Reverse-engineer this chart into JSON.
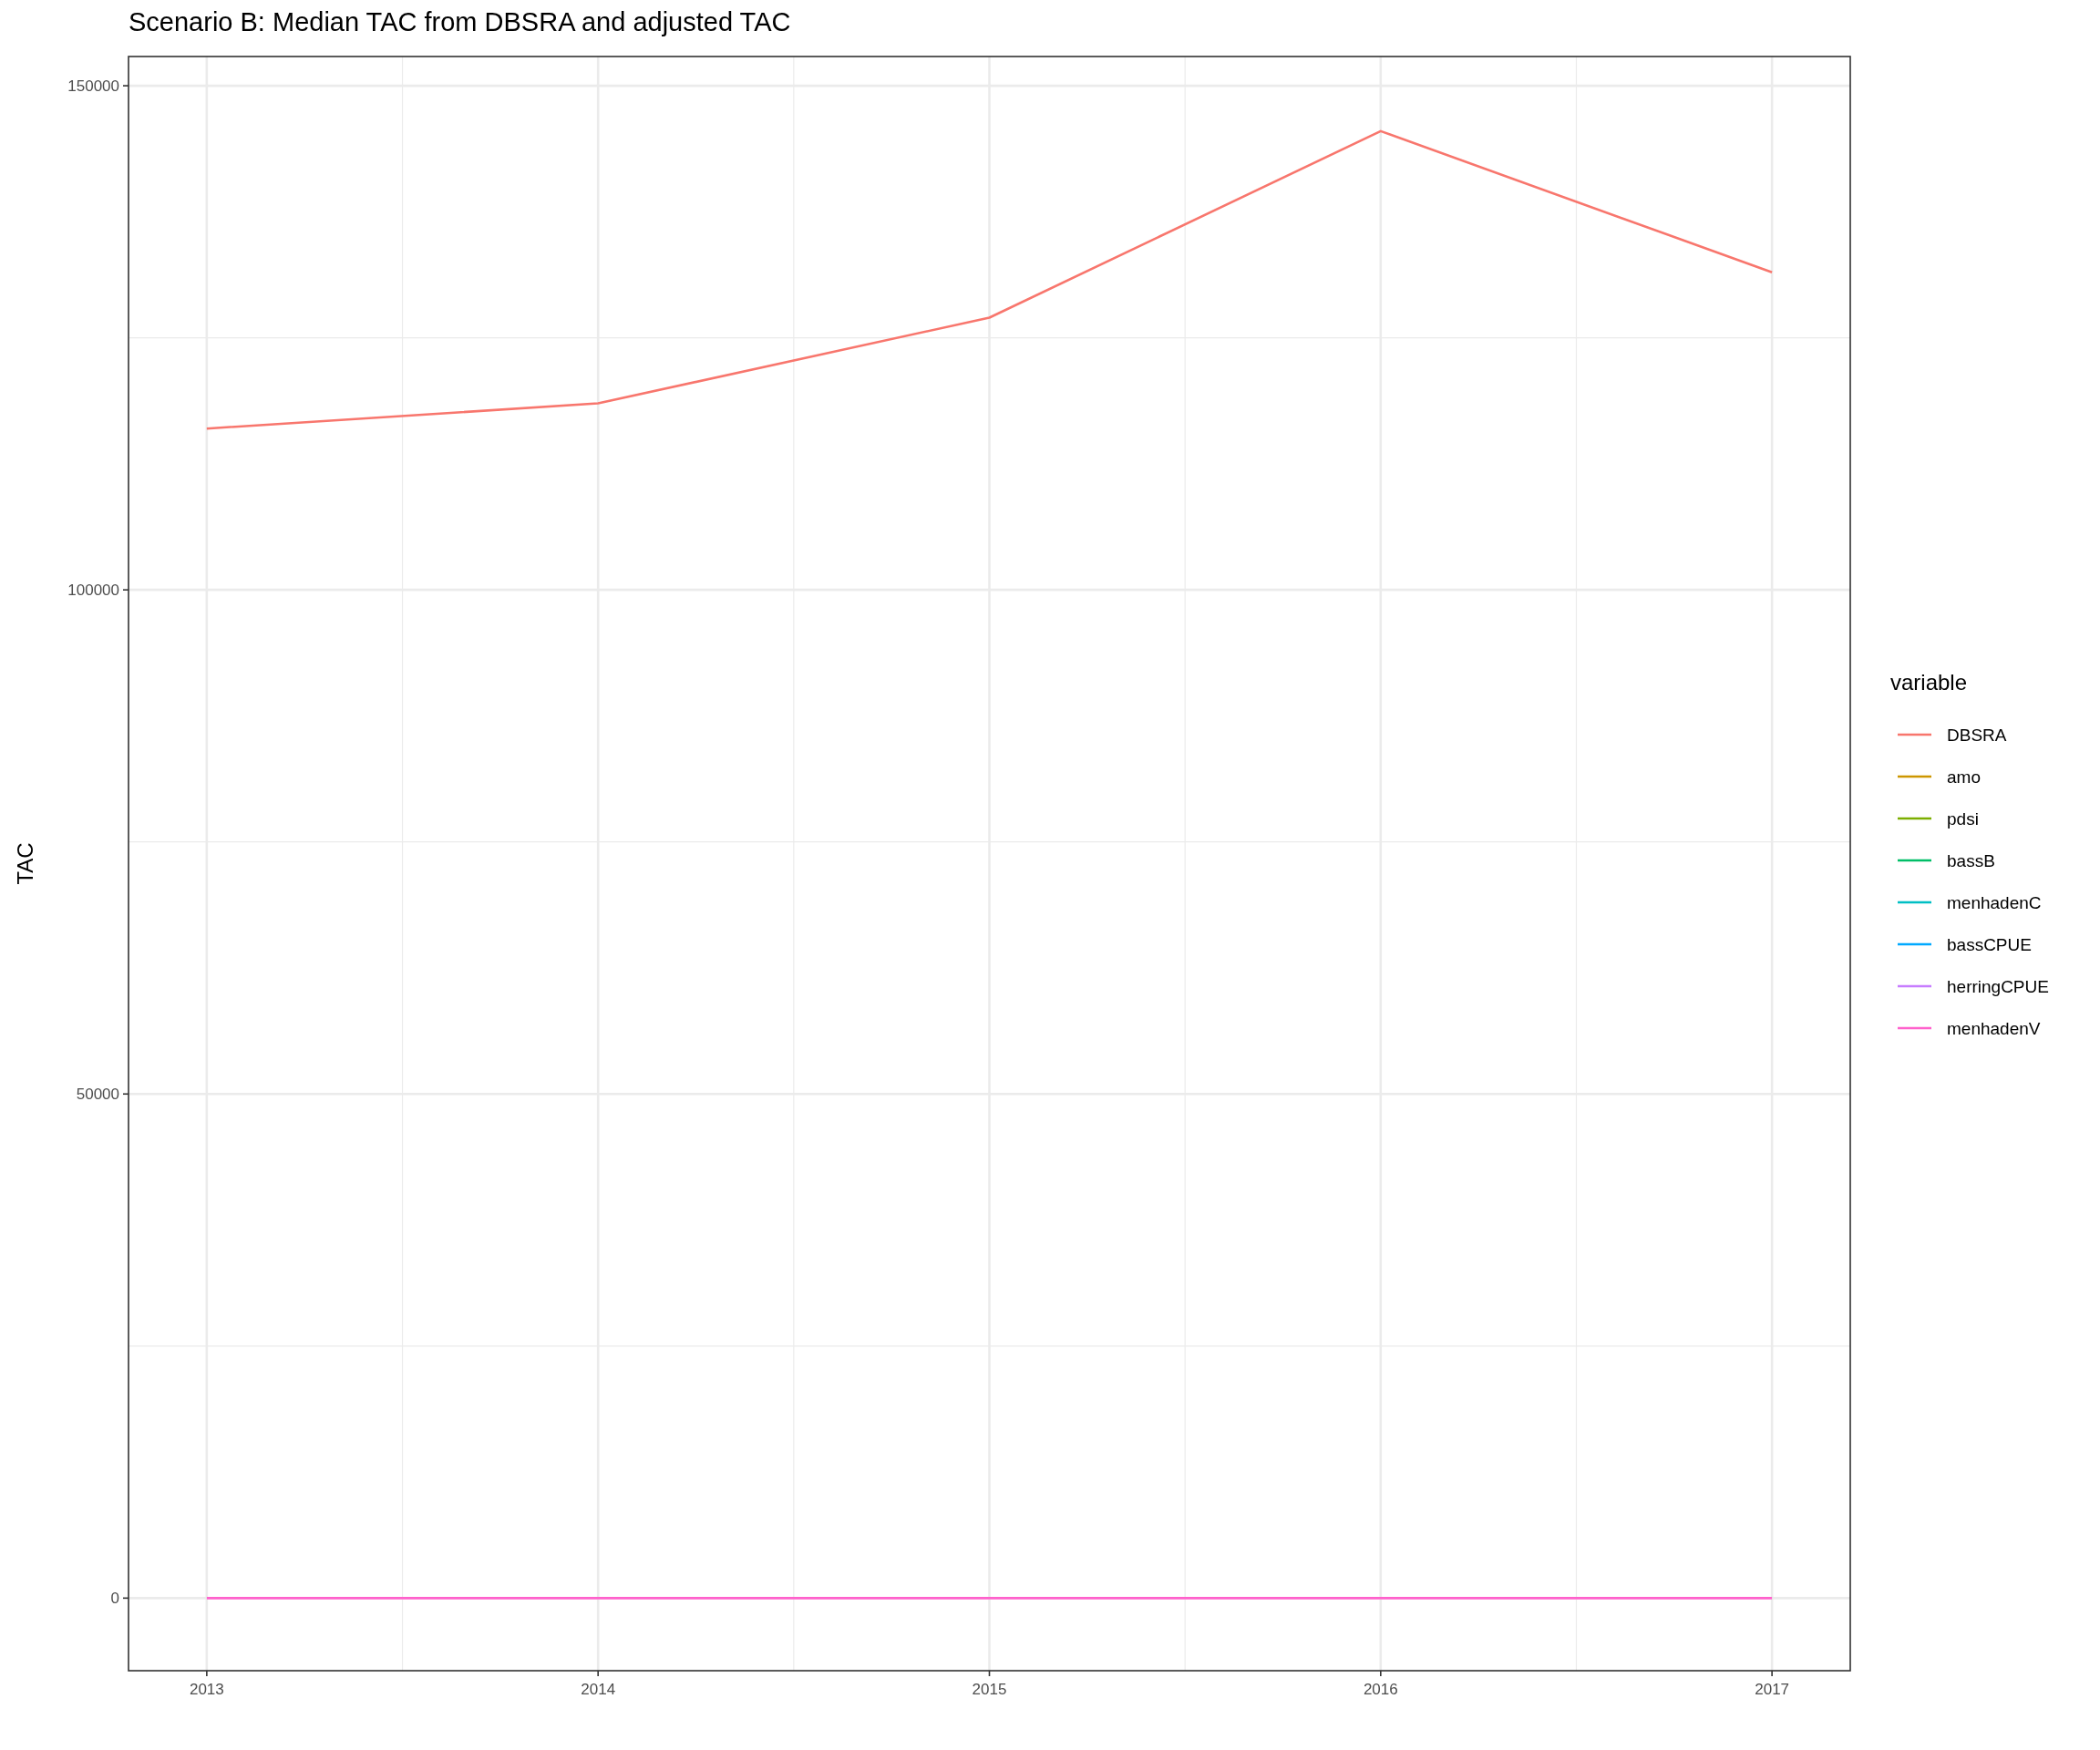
{
  "chart_data": {
    "type": "line",
    "title": "Scenario B: Median TAC from DBSRA and adjusted TAC",
    "ylabel": "TAC",
    "legend_title": "variable",
    "x": [
      2013,
      2014,
      2015,
      2016,
      2017
    ],
    "series": [
      {
        "name": "DBSRA",
        "color": "#f8766d",
        "values": [
          116000,
          118500,
          127000,
          145500,
          131500
        ]
      },
      {
        "name": "amo",
        "color": "#cd9600",
        "values": [
          null,
          null,
          null,
          null,
          null
        ]
      },
      {
        "name": "pdsi",
        "color": "#7cae00",
        "values": [
          null,
          null,
          null,
          null,
          null
        ]
      },
      {
        "name": "bassB",
        "color": "#00be67",
        "values": [
          null,
          null,
          null,
          null,
          null
        ]
      },
      {
        "name": "menhadenC",
        "color": "#00bfc4",
        "values": [
          null,
          null,
          null,
          null,
          null
        ]
      },
      {
        "name": "bassCPUE",
        "color": "#00a9ff",
        "values": [
          null,
          null,
          null,
          null,
          null
        ]
      },
      {
        "name": "herringCPUE",
        "color": "#c77cff",
        "values": [
          null,
          null,
          null,
          null,
          null
        ]
      },
      {
        "name": "menhadenV",
        "color": "#ff61cc",
        "values": [
          0,
          0,
          0,
          0,
          0
        ]
      }
    ],
    "xlim": [
      2012.8,
      2017.2
    ],
    "xticks": [
      2013,
      2014,
      2015,
      2016,
      2017
    ],
    "ylim": [
      -7200,
      152900
    ],
    "yticks": [
      0,
      50000,
      100000,
      150000
    ],
    "grid": true,
    "legend": "right",
    "marker": "none",
    "line_style": "solid"
  }
}
